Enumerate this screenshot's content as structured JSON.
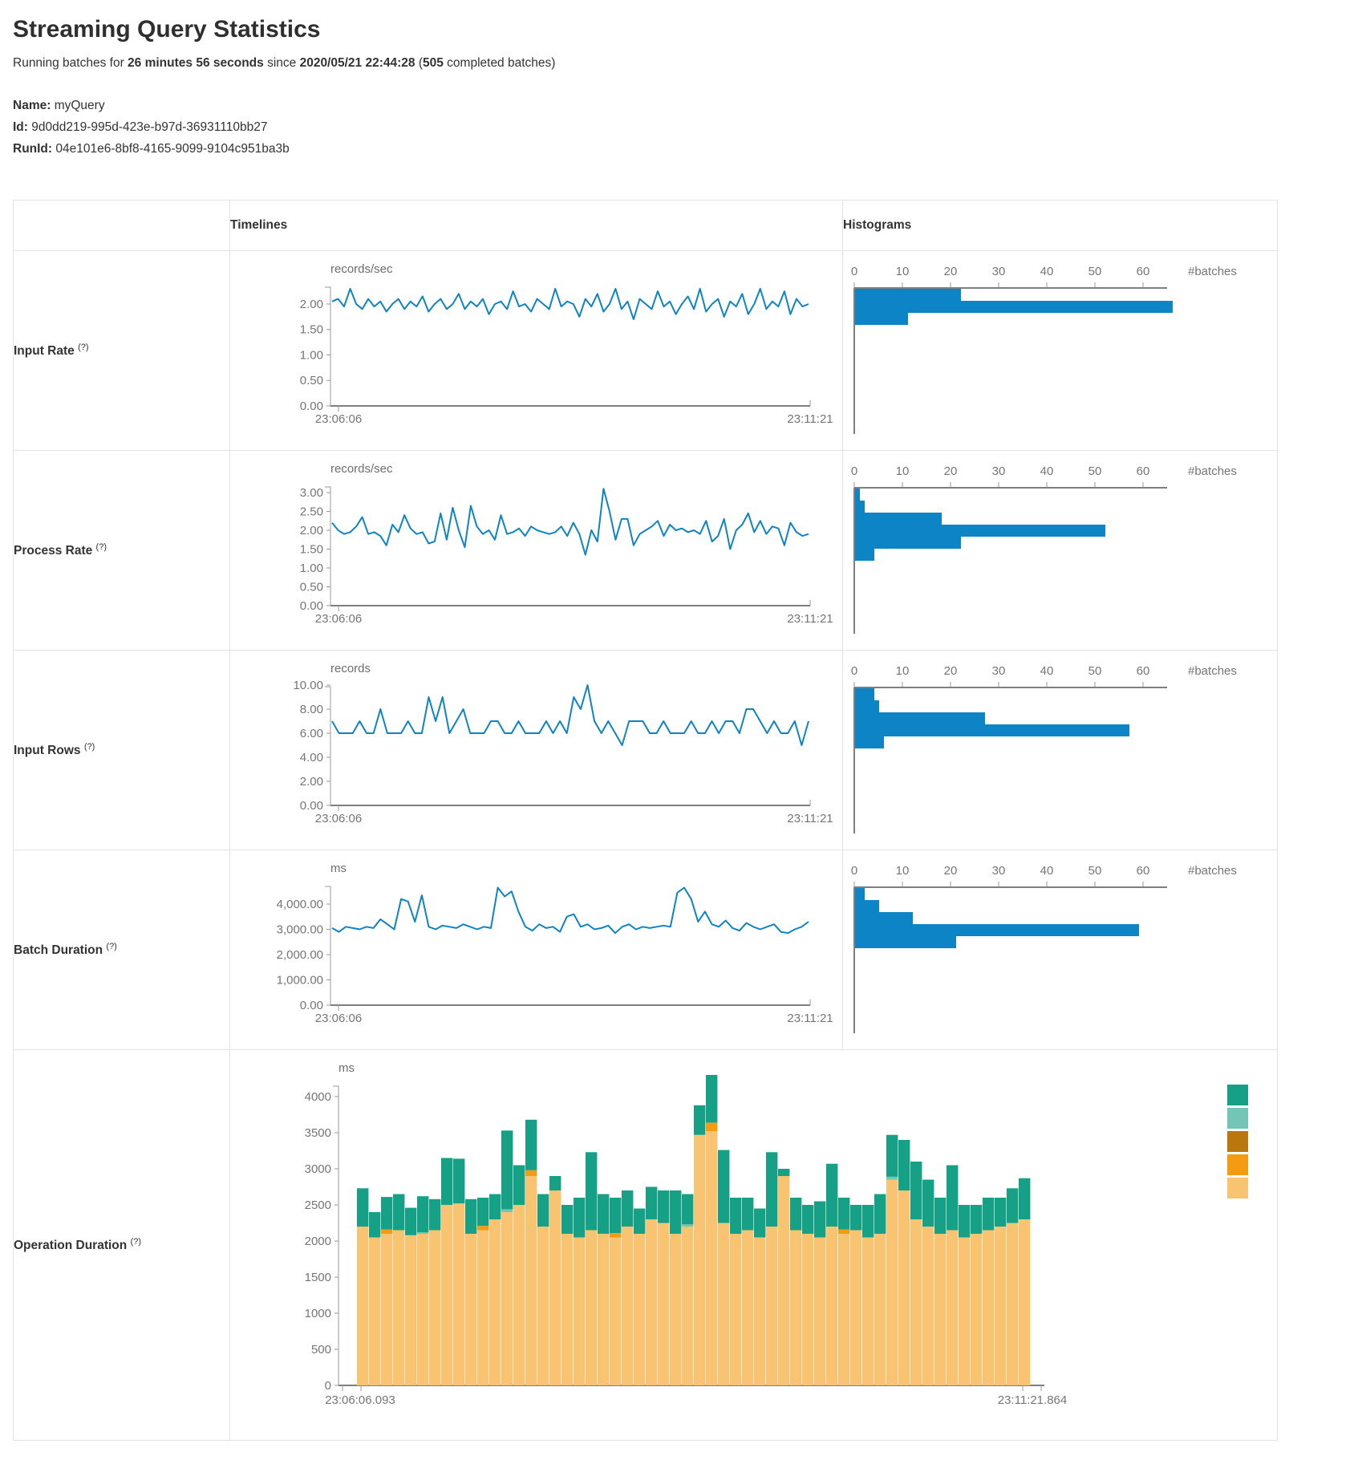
{
  "page": {
    "title": "Streaming Query Statistics",
    "subtitle": {
      "prefix": "Running batches for ",
      "duration": "26 minutes 56 seconds",
      "mid": " since ",
      "start_time": "2020/05/21 22:44:28",
      "paren": " (",
      "batches": "505",
      "suffix": " completed batches)"
    },
    "name_label": "Name:",
    "name_value": "myQuery",
    "id_label": "Id:",
    "id_value": "9d0dd219-995d-423e-b97d-36931110bb27",
    "runid_label": "RunId:",
    "runid_value": "04e101e6-8bf8-4165-9099-9104c951ba3b"
  },
  "table": {
    "headers": {
      "timelines": "Timelines",
      "histograms": "Histograms"
    }
  },
  "colors": {
    "series_blue": "#0d84c5",
    "axis_gray": "#9a9a9a",
    "tick_text": "#757575"
  },
  "chart_data": {
    "rows": [
      {
        "metric": "Input Rate",
        "help": "(?)",
        "timeline": {
          "type": "line",
          "unit": "records/sec",
          "color": "#0d84c5",
          "x_start": "23:06:06",
          "x_end": "23:11:21",
          "ytick_labels": [
            "2.00",
            "1.50",
            "1.00",
            "0.50",
            "0.00"
          ],
          "ytick_values": [
            2,
            1.5,
            1,
            0.5,
            0
          ],
          "ylim": [
            0,
            2.33
          ],
          "values": [
            2.05,
            2.1,
            1.95,
            2.3,
            2.0,
            1.9,
            2.1,
            1.95,
            2.05,
            1.85,
            2.0,
            2.1,
            1.9,
            2.05,
            1.95,
            2.15,
            1.85,
            2.0,
            2.1,
            1.9,
            2.0,
            2.2,
            1.9,
            2.05,
            1.95,
            2.1,
            1.8,
            2.0,
            2.05,
            1.9,
            2.25,
            1.95,
            2.0,
            1.85,
            2.1,
            2.0,
            1.9,
            2.3,
            1.95,
            2.05,
            2.0,
            1.75,
            2.1,
            1.95,
            2.2,
            1.85,
            2.0,
            2.3,
            1.9,
            2.05,
            1.7,
            2.1,
            2.0,
            1.9,
            2.25,
            1.95,
            2.05,
            1.8,
            2.0,
            2.15,
            1.9,
            2.3,
            1.85,
            2.0,
            2.1,
            1.75,
            2.05,
            1.95,
            2.2,
            1.8,
            2.0,
            2.3,
            1.9,
            2.05,
            1.95,
            2.25,
            1.8,
            2.1,
            1.95,
            2.0
          ]
        },
        "histogram": {
          "type": "bar",
          "xlabel": "#batches",
          "color": "#0d84c5",
          "xtick_labels": [
            "0",
            "10",
            "20",
            "30",
            "40",
            "50",
            "60"
          ],
          "xtick_values": [
            0,
            10,
            20,
            30,
            40,
            50,
            60
          ],
          "xlim": [
            0,
            65
          ],
          "values": [
            22,
            66,
            11
          ]
        }
      },
      {
        "metric": "Process Rate",
        "help": "(?)",
        "timeline": {
          "type": "line",
          "unit": "records/sec",
          "color": "#0d84c5",
          "x_start": "23:06:06",
          "x_end": "23:11:21",
          "ytick_labels": [
            "3.00",
            "2.50",
            "2.00",
            "1.50",
            "1.00",
            "0.50",
            "0.00"
          ],
          "ytick_values": [
            3,
            2.5,
            2,
            1.5,
            1,
            0.5,
            0
          ],
          "ylim": [
            0,
            3.15
          ],
          "values": [
            2.2,
            2.0,
            1.9,
            1.95,
            2.1,
            2.35,
            1.9,
            1.95,
            1.85,
            1.6,
            2.15,
            1.95,
            2.4,
            2.05,
            1.9,
            1.95,
            1.65,
            1.7,
            2.45,
            1.75,
            2.6,
            2.0,
            1.55,
            2.65,
            2.1,
            1.9,
            2.0,
            1.75,
            2.4,
            1.9,
            1.95,
            2.05,
            1.85,
            2.1,
            2.0,
            1.95,
            1.9,
            1.95,
            2.1,
            1.85,
            2.2,
            1.9,
            1.35,
            2.0,
            1.7,
            3.1,
            2.5,
            1.75,
            2.3,
            2.3,
            1.6,
            1.9,
            2.0,
            2.1,
            2.25,
            1.85,
            2.15,
            2.0,
            2.05,
            1.95,
            2.0,
            1.9,
            2.25,
            1.7,
            1.85,
            2.3,
            1.5,
            2.0,
            2.15,
            2.45,
            1.95,
            2.25,
            1.9,
            2.1,
            2.05,
            1.6,
            2.2,
            1.95,
            1.85,
            1.9
          ]
        },
        "histogram": {
          "type": "bar",
          "xlabel": "#batches",
          "color": "#0d84c5",
          "xtick_labels": [
            "0",
            "10",
            "20",
            "30",
            "40",
            "50",
            "60"
          ],
          "xtick_values": [
            0,
            10,
            20,
            30,
            40,
            50,
            60
          ],
          "xlim": [
            0,
            65
          ],
          "values": [
            1,
            2,
            18,
            52,
            22,
            4
          ]
        }
      },
      {
        "metric": "Input Rows",
        "help": "(?)",
        "timeline": {
          "type": "line",
          "unit": "records",
          "color": "#0d84c5",
          "x_start": "23:06:06",
          "x_end": "23:11:21",
          "ytick_labels": [
            "10.00",
            "8.00",
            "6.00",
            "4.00",
            "2.00",
            "0.00"
          ],
          "ytick_values": [
            10,
            8,
            6,
            4,
            2,
            0
          ],
          "ylim": [
            0,
            9.87
          ],
          "values": [
            7,
            6,
            6,
            6,
            7,
            6,
            6,
            8,
            6,
            6,
            6,
            7,
            6,
            6,
            9,
            7,
            9,
            6,
            7,
            8,
            6,
            6,
            6,
            7,
            7,
            6,
            6,
            7,
            6,
            6,
            6,
            7,
            6,
            7,
            6,
            9,
            8,
            10,
            7,
            6,
            7,
            6,
            5,
            7,
            7,
            7,
            6,
            6,
            7,
            6,
            6,
            6,
            7,
            6,
            6,
            7,
            6,
            7,
            7,
            6,
            8,
            8,
            7,
            6,
            7,
            6,
            6,
            7,
            5,
            7
          ]
        },
        "histogram": {
          "type": "bar",
          "xlabel": "#batches",
          "color": "#0d84c5",
          "xtick_labels": [
            "0",
            "10",
            "20",
            "30",
            "40",
            "50",
            "60"
          ],
          "xtick_values": [
            0,
            10,
            20,
            30,
            40,
            50,
            60
          ],
          "xlim": [
            0,
            65
          ],
          "values": [
            4,
            5,
            27,
            57,
            6
          ]
        }
      },
      {
        "metric": "Batch Duration",
        "help": "(?)",
        "timeline": {
          "type": "line",
          "unit": "ms",
          "color": "#0d84c5",
          "x_start": "23:06:06",
          "x_end": "23:11:21",
          "ytick_labels": [
            "4,000.00",
            "3,000.00",
            "2,000.00",
            "1,000.00",
            "0.00"
          ],
          "ytick_values": [
            4000,
            3000,
            2000,
            1000,
            0
          ],
          "ylim": [
            0,
            4698
          ],
          "values": [
            3050,
            2900,
            3100,
            3050,
            3000,
            3100,
            3050,
            3400,
            3200,
            3000,
            4200,
            4100,
            3300,
            4350,
            3100,
            3000,
            3150,
            3100,
            3050,
            3200,
            3100,
            3000,
            3100,
            3050,
            4650,
            4300,
            4500,
            3700,
            3100,
            2950,
            3200,
            3050,
            3100,
            2900,
            3500,
            3600,
            3100,
            3200,
            3000,
            3050,
            3150,
            2850,
            3100,
            3200,
            3000,
            3100,
            3050,
            3100,
            3150,
            3100,
            4450,
            4650,
            4200,
            3300,
            3700,
            3200,
            3100,
            3350,
            3050,
            2950,
            3250,
            3100,
            3000,
            3100,
            3200,
            2900,
            2850,
            3000,
            3100,
            3300
          ]
        },
        "histogram": {
          "type": "bar",
          "xlabel": "#batches",
          "color": "#0d84c5",
          "xtick_labels": [
            "0",
            "10",
            "20",
            "30",
            "40",
            "50",
            "60"
          ],
          "xtick_values": [
            0,
            10,
            20,
            30,
            40,
            50,
            60
          ],
          "xlim": [
            0,
            65
          ],
          "values": [
            2,
            5,
            12,
            59,
            21
          ]
        }
      }
    ],
    "operation_duration": {
      "metric": "Operation Duration",
      "help": "(?)",
      "type": "stacked-bar",
      "unit": "ms",
      "x_start": "23:06:06.093",
      "x_end": "23:11:21.864",
      "ytick_labels": [
        "4000",
        "3500",
        "3000",
        "2500",
        "2000",
        "1500",
        "1000",
        "500",
        "0"
      ],
      "ytick_values": [
        4000,
        3500,
        3000,
        2500,
        2000,
        1500,
        1000,
        500,
        0
      ],
      "ylim": [
        0,
        4400
      ],
      "legend_colors": [
        "#16A085",
        "#73C6B6",
        "#B9770E",
        "#F39C12",
        "#F8C471"
      ],
      "series": [
        {
          "color": "#F8C471",
          "values": [
            2200,
            2050,
            2100,
            2150,
            2080,
            2100,
            2150,
            2500,
            2520,
            2100,
            2150,
            2300,
            2400,
            2500,
            2900,
            2200,
            2700,
            2100,
            2050,
            2150,
            2100,
            2050,
            2200,
            2100,
            2300,
            2250,
            2100,
            2200,
            3470,
            3520,
            2250,
            2100,
            2150,
            2050,
            2200,
            2900,
            2150,
            2100,
            2050,
            2200,
            2100,
            2150,
            2050,
            2100,
            2850,
            2700,
            2300,
            2200,
            2100,
            2150,
            2050,
            2100,
            2150,
            2200,
            2250,
            2300
          ]
        },
        {
          "color": "#F39C12",
          "values": [
            0,
            0,
            60,
            0,
            0,
            0,
            0,
            0,
            0,
            0,
            60,
            0,
            0,
            0,
            80,
            0,
            0,
            0,
            0,
            0,
            0,
            60,
            0,
            0,
            0,
            0,
            0,
            0,
            0,
            120,
            0,
            0,
            0,
            0,
            0,
            0,
            0,
            0,
            0,
            0,
            60,
            0,
            0,
            0,
            0,
            0,
            0,
            0,
            0,
            0,
            0,
            0,
            0,
            0,
            0,
            0
          ]
        },
        {
          "color": "#73C6B6",
          "values": [
            0,
            0,
            0,
            0,
            0,
            20,
            0,
            0,
            0,
            0,
            0,
            0,
            40,
            0,
            0,
            0,
            0,
            0,
            0,
            0,
            0,
            0,
            0,
            0,
            0,
            0,
            0,
            30,
            0,
            0,
            0,
            0,
            0,
            0,
            0,
            0,
            0,
            0,
            0,
            0,
            0,
            0,
            0,
            0,
            40,
            0,
            0,
            0,
            0,
            0,
            0,
            0,
            0,
            0,
            0,
            0
          ]
        },
        {
          "color": "#16A085",
          "values": [
            530,
            350,
            450,
            500,
            380,
            500,
            430,
            650,
            620,
            480,
            390,
            350,
            1090,
            550,
            700,
            450,
            200,
            400,
            550,
            1080,
            550,
            490,
            500,
            350,
            450,
            450,
            600,
            420,
            410,
            660,
            1010,
            500,
            450,
            400,
            1030,
            100,
            450,
            400,
            500,
            870,
            440,
            350,
            450,
            550,
            580,
            700,
            800,
            650,
            500,
            900,
            450,
            400,
            450,
            400,
            480,
            570
          ]
        }
      ]
    }
  }
}
